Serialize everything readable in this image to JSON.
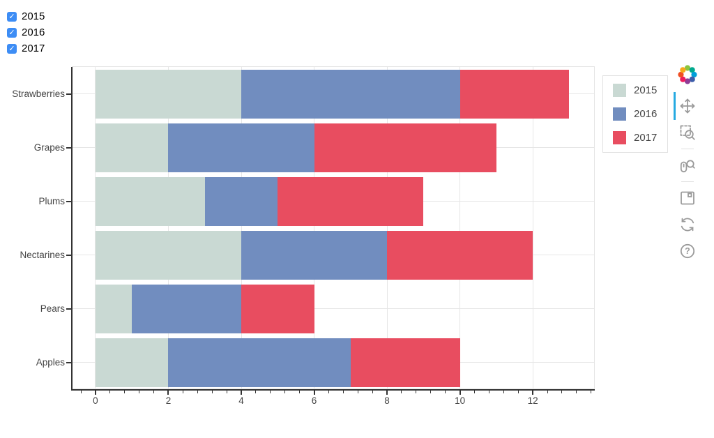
{
  "widgets": {
    "checkbox_group": {
      "items": [
        {
          "label": "2015",
          "checked": true
        },
        {
          "label": "2016",
          "checked": true
        },
        {
          "label": "2017",
          "checked": true
        }
      ],
      "accent_color": "#3d8df5"
    }
  },
  "chart_data": {
    "type": "bar",
    "orientation": "horizontal",
    "stacked": true,
    "title": "",
    "categories": [
      "Apples",
      "Pears",
      "Nectarines",
      "Plums",
      "Grapes",
      "Strawberries"
    ],
    "category_order": "bottom-to-top",
    "series": [
      {
        "name": "2015",
        "color": "#c9d9d3",
        "values": [
          2,
          1,
          4,
          3,
          2,
          4
        ]
      },
      {
        "name": "2016",
        "color": "#718dbf",
        "values": [
          5,
          3,
          4,
          2,
          4,
          6
        ]
      },
      {
        "name": "2017",
        "color": "#e84d60",
        "values": [
          3,
          2,
          4,
          4,
          5,
          3
        ]
      }
    ],
    "stack_totals": [
      10,
      6,
      12,
      9,
      11,
      13
    ],
    "x_ticks": [
      0,
      2,
      4,
      6,
      8,
      10,
      12
    ],
    "minor_tick_step": 0.4,
    "xlim": [
      -0.63,
      13.7
    ],
    "xlabel": "",
    "ylabel": "",
    "grid": {
      "x": true,
      "y": true
    },
    "legend": {
      "position": "right-outside",
      "entries": [
        "2015",
        "2016",
        "2017"
      ]
    }
  },
  "toolbar": {
    "logo": "bokeh",
    "active_tool": "pan",
    "tools": [
      "pan",
      "box-zoom",
      "wheel-zoom",
      "save",
      "reset",
      "help"
    ]
  },
  "colors": {
    "grid": "#e6e6e6",
    "axis": "#333333",
    "tick_label": "#444444",
    "outline": "#e5e5e5",
    "toolbar_icon": "#9a9a9a",
    "active_indicator": "#26aae1"
  }
}
